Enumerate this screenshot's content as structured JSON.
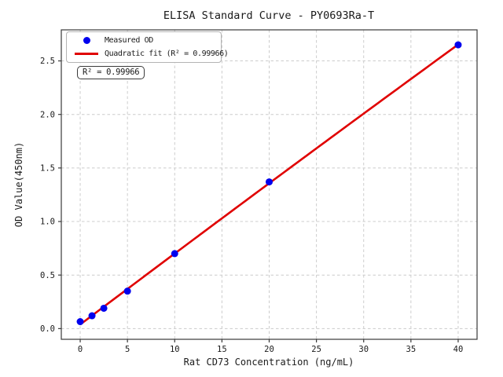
{
  "chart_data": {
    "type": "scatter",
    "title": "ELISA Standard Curve - PY0693Ra-T",
    "xlabel": "Rat CD73 Concentration (ng/mL)",
    "ylabel": "OD Value(450nm)",
    "xlim": [
      -2,
      42
    ],
    "ylim": [
      -0.1,
      2.79
    ],
    "xticks": [
      0,
      5,
      10,
      15,
      20,
      25,
      30,
      35,
      40
    ],
    "yticks": [
      0.0,
      0.5,
      1.0,
      1.5,
      2.0,
      2.5
    ],
    "grid": true,
    "grid_style": "dashed",
    "legend": {
      "position": "upper-left",
      "entries": [
        {
          "label": "Measured OD",
          "marker": "dot",
          "color": "#0000ee"
        },
        {
          "label": "Quadratic fit (R² = 0.99966)",
          "marker": "line",
          "color": "#e00000"
        }
      ]
    },
    "annotation": {
      "text": "R² = 0.99966",
      "r_squared": 0.99966
    },
    "series": [
      {
        "name": "Measured OD",
        "type": "scatter",
        "color": "#0000ee",
        "x": [
          0,
          1.25,
          2.5,
          5,
          10,
          20,
          40
        ],
        "y": [
          0.065,
          0.12,
          0.19,
          0.35,
          0.7,
          1.37,
          2.65
        ]
      },
      {
        "name": "Quadratic fit",
        "type": "line",
        "color": "#e00000",
        "fit": "quadratic",
        "x_range": [
          0,
          40
        ]
      }
    ],
    "colors": {
      "scatter": "#0000ee",
      "fit_line": "#e00000",
      "grid": "#cccccc",
      "spine": "#3a3a3a",
      "tick_text": "#1a1a1a",
      "background": "#ffffff"
    }
  }
}
